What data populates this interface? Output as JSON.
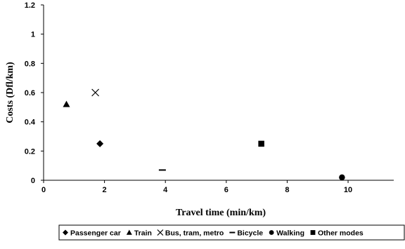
{
  "chart_data": {
    "type": "scatter",
    "title": "",
    "xlabel": "Travel time (min/km)",
    "ylabel": "Costs (Dfl/km)",
    "xlim": [
      0,
      11.5
    ],
    "ylim": [
      0,
      1.2
    ],
    "xticks": [
      "0",
      "2",
      "4",
      "6",
      "8",
      "10"
    ],
    "yticks": [
      "0",
      "0.2",
      "0.4",
      "0.6",
      "0.8",
      "1",
      "1.2"
    ],
    "legend_position": "bottom",
    "series": [
      {
        "name": "Passenger car",
        "marker": "diamond",
        "x": 1.85,
        "y": 0.25
      },
      {
        "name": "Train",
        "marker": "triangle",
        "x": 0.75,
        "y": 0.52
      },
      {
        "name": "Bus, tram, metro",
        "marker": "x",
        "x": 1.7,
        "y": 0.6
      },
      {
        "name": "Bicycle",
        "marker": "dash",
        "x": 3.9,
        "y": 0.07
      },
      {
        "name": "Walking",
        "marker": "circle",
        "x": 9.8,
        "y": 0.02
      },
      {
        "name": "Other modes",
        "marker": "square",
        "x": 7.15,
        "y": 0.25
      }
    ]
  }
}
